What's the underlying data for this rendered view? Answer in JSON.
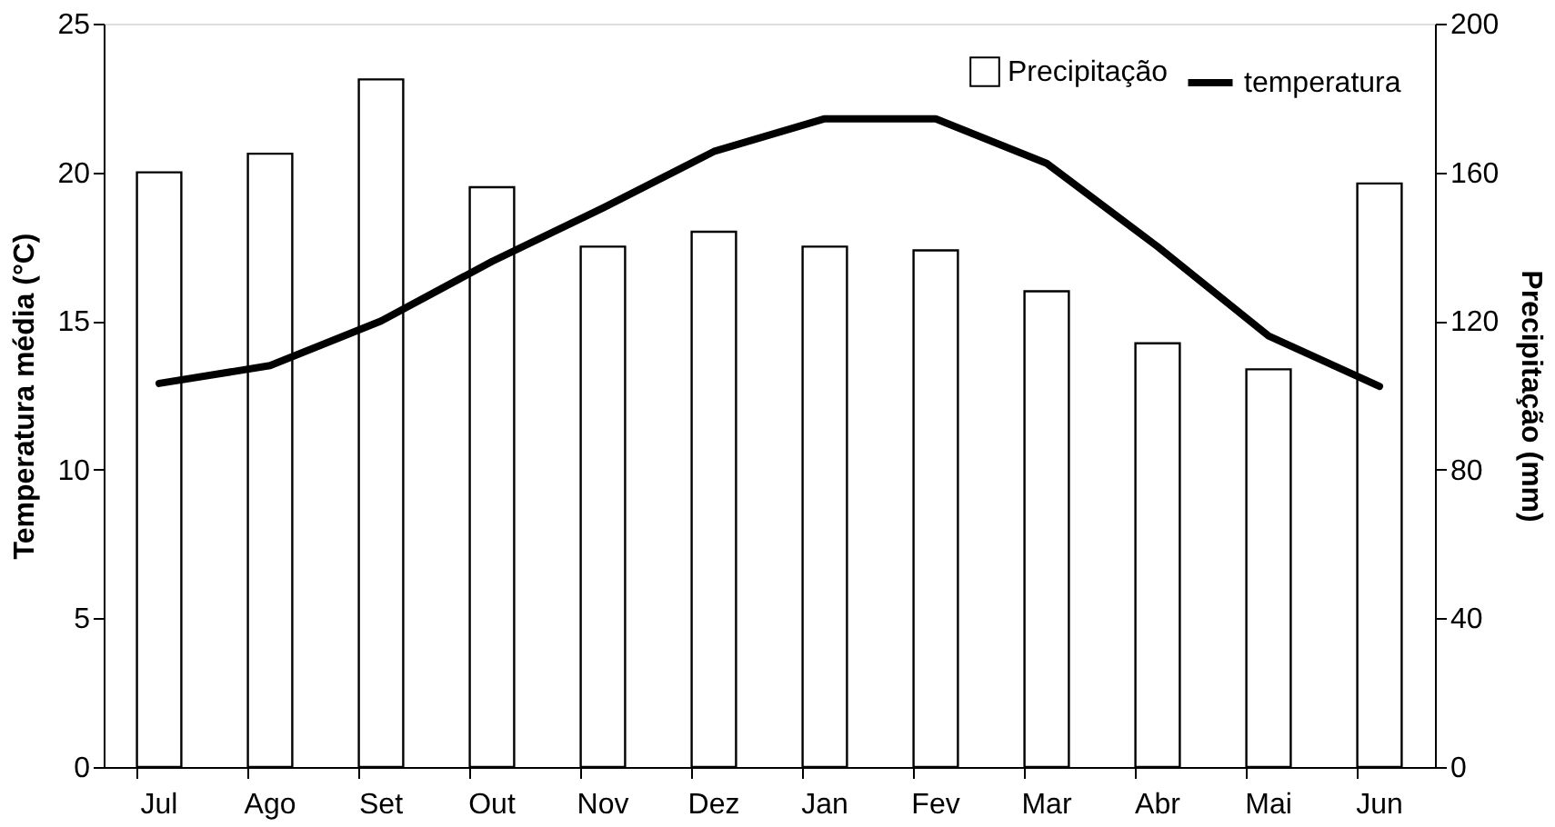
{
  "chart_data": {
    "type": "bar",
    "ylabel": "Temperatura média (°C)",
    "y2label": "Precipitação (mm)",
    "categories": [
      "Jul",
      "Ago",
      "Set",
      "Out",
      "Nov",
      "Dez",
      "Jan",
      "Fev",
      "Mar",
      "Abr",
      "Mai",
      "Jun"
    ],
    "series": [
      {
        "name": "Precipitação",
        "axis": "y2",
        "color": "#ffffff",
        "values": [
          160,
          165,
          185,
          156,
          140,
          144,
          140,
          139,
          128,
          114,
          107,
          157
        ]
      },
      {
        "name": "temperatura",
        "type": "line",
        "color": "#000000",
        "values": [
          12.9,
          13.5,
          15.0,
          17.0,
          18.8,
          20.7,
          21.8,
          21.8,
          20.3,
          17.5,
          14.5,
          12.8
        ]
      }
    ],
    "ylim": [
      0,
      25
    ],
    "yticks": [
      0,
      5,
      10,
      15,
      20,
      25
    ],
    "y2lim": [
      0,
      200
    ],
    "y2ticks": [
      0,
      40,
      80,
      120,
      160,
      200
    ],
    "grid": false,
    "legend": "top right"
  }
}
